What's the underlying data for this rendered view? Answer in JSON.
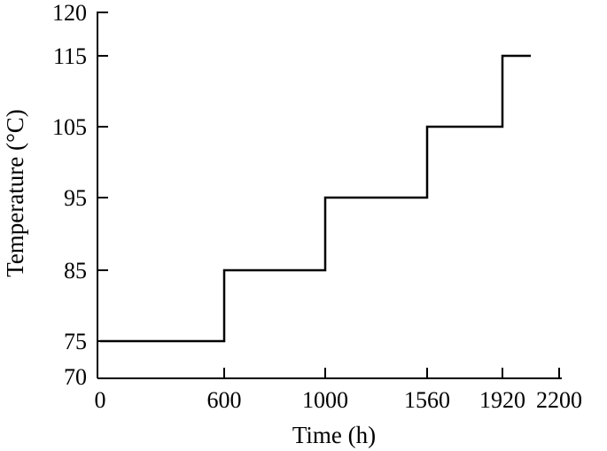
{
  "chart_data": {
    "type": "line",
    "step": true,
    "xlabel": "Time (h)",
    "ylabel": "Temperature (°C)",
    "x_ticks": [
      {
        "value": 0,
        "label": "0"
      },
      {
        "value": 600,
        "label": "600"
      },
      {
        "value": 1000,
        "label": "1000"
      },
      {
        "value": 1560,
        "label": "1560"
      },
      {
        "value": 1920,
        "label": "1920"
      },
      {
        "value": 2200,
        "label": "2200"
      }
    ],
    "y_ticks": [
      {
        "value": 70,
        "label": "70"
      },
      {
        "value": 75,
        "label": "75"
      },
      {
        "value": 85,
        "label": "85"
      },
      {
        "value": 95,
        "label": "95"
      },
      {
        "value": 105,
        "label": "105"
      },
      {
        "value": 115,
        "label": "115"
      },
      {
        "value": 120,
        "label": "120"
      }
    ],
    "series": [
      {
        "points": [
          {
            "x": 0,
            "y": 75
          },
          {
            "x": 600,
            "y": 75
          },
          {
            "x": 600,
            "y": 85
          },
          {
            "x": 1000,
            "y": 85
          },
          {
            "x": 1000,
            "y": 95
          },
          {
            "x": 1560,
            "y": 95
          },
          {
            "x": 1560,
            "y": 105
          },
          {
            "x": 1920,
            "y": 105
          },
          {
            "x": 1920,
            "y": 115
          },
          {
            "x": 2060,
            "y": 115
          }
        ]
      }
    ],
    "legend": "none",
    "grid": false
  }
}
